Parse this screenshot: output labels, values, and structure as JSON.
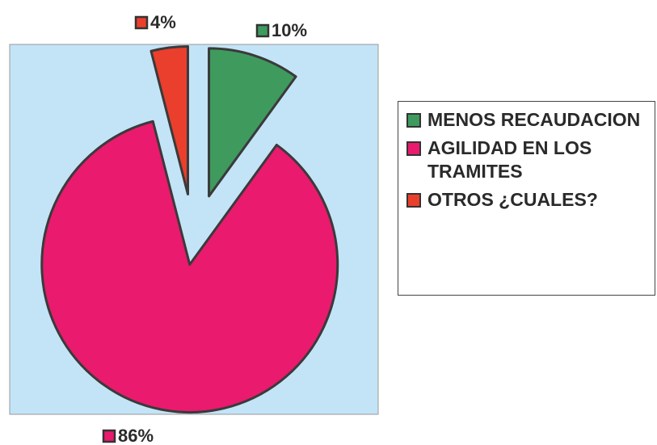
{
  "chart_data": {
    "type": "pie",
    "categories": [
      "MENOS RECAUDACION",
      "AGILIDAD EN LOS TRAMITES",
      "OTROS ¿CUALES?"
    ],
    "values": [
      10,
      86,
      4
    ],
    "value_labels": [
      "10%",
      "86%",
      "4%"
    ],
    "colors": [
      "#3f9a5e",
      "#ea1a6e",
      "#ea3f2c"
    ],
    "legend": "right"
  }
}
